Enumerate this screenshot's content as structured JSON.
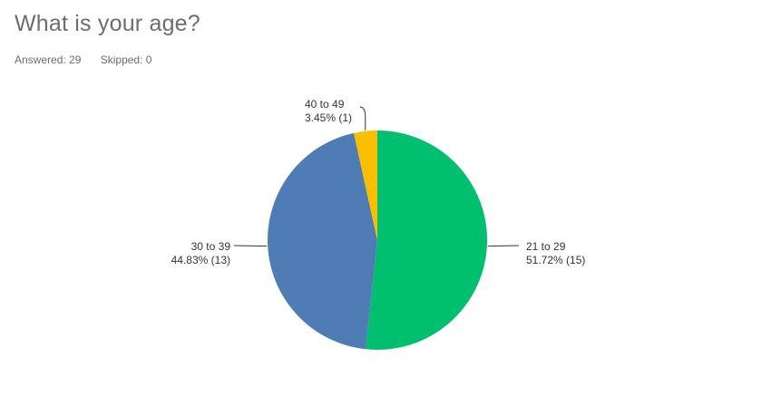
{
  "question": {
    "title": "What is your age?",
    "answered_label": "Answered: 29",
    "skipped_label": "Skipped: 0"
  },
  "chart_data": {
    "type": "pie",
    "categories": [
      "21 to 29",
      "30 to 39",
      "40 to 49"
    ],
    "values": [
      51.72,
      44.83,
      3.45
    ],
    "counts": [
      15,
      13,
      1
    ],
    "data_labels": [
      "51.72% (15)",
      "44.83% (13)",
      "3.45% (1)"
    ],
    "colors": [
      "#00bf6f",
      "#507cb6",
      "#f9be00"
    ],
    "legend": "none"
  }
}
